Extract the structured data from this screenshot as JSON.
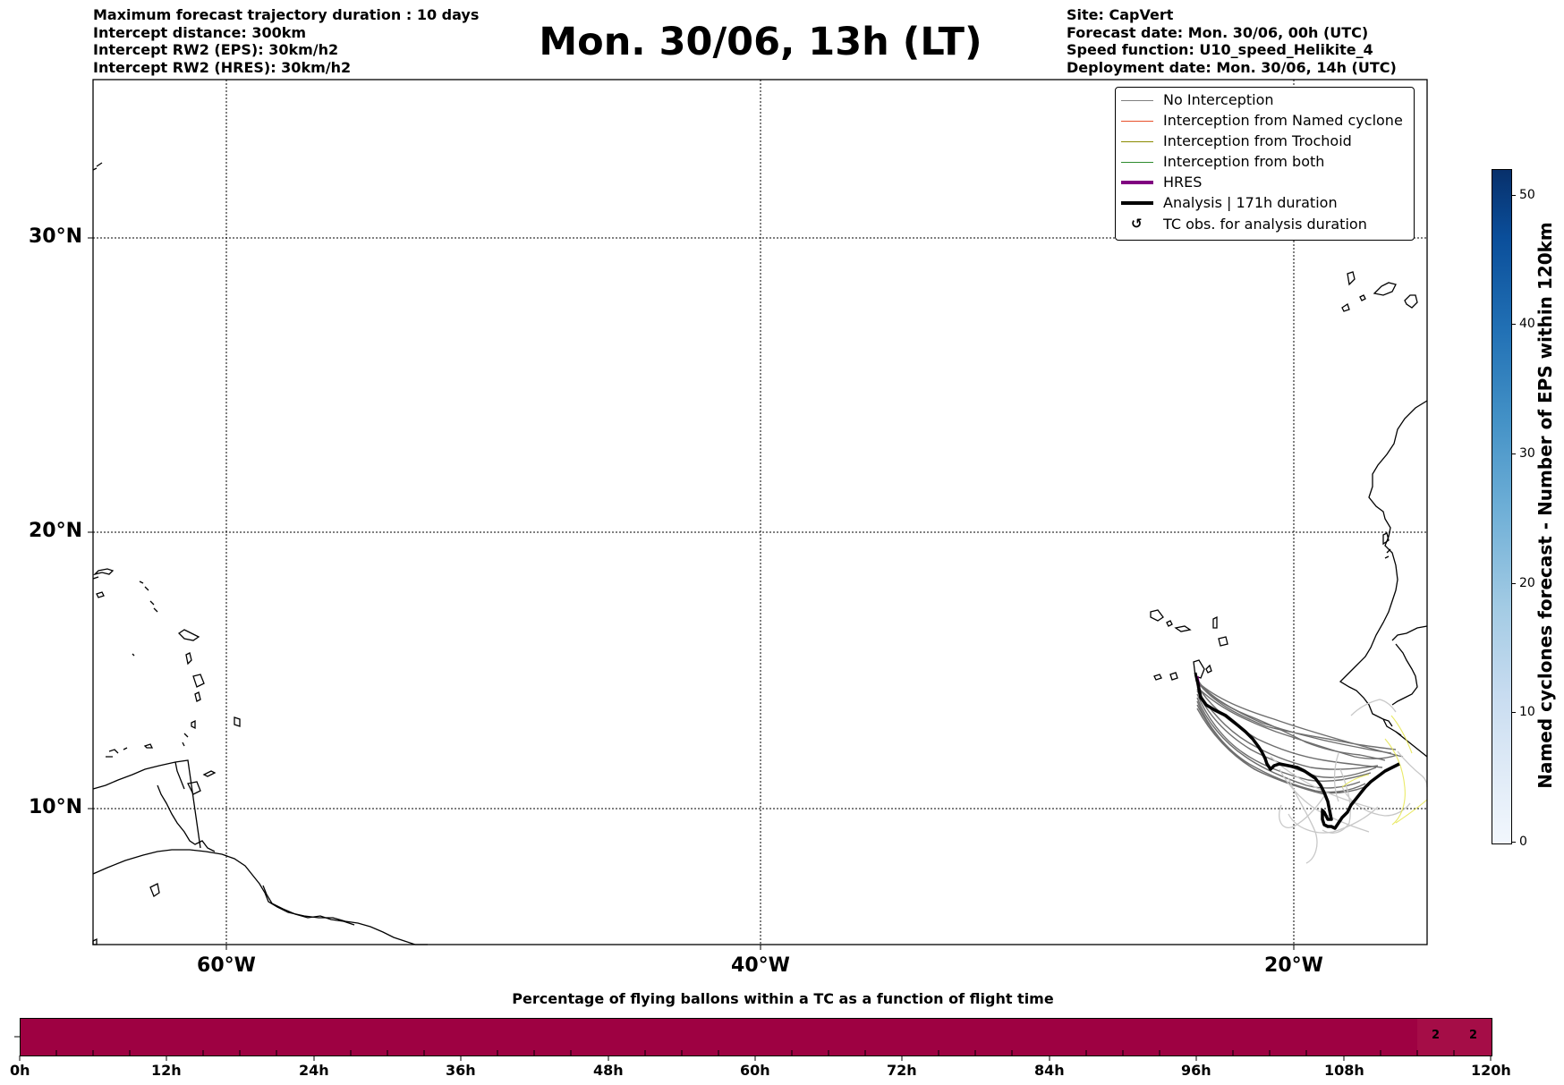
{
  "header_left": [
    "Maximum forecast trajectory duration : 10 days",
    "Intercept distance: 300km",
    "Intercept RW2 (EPS):  30km/h2",
    "Intercept RW2 (HRES): 30km/h2"
  ],
  "title": "Mon. 30/06, 13h (LT)",
  "header_right": [
    "Site: CapVert",
    "Forecast date: Mon. 30/06, 00h (UTC)",
    "Speed function: U10_speed_Helikite_4",
    "Deployment date: Mon. 30/06, 14h (UTC)"
  ],
  "map": {
    "lat_labels": [
      "30°N",
      "20°N",
      "10°N"
    ],
    "lon_labels": [
      "60°W",
      "40°W",
      "20°W"
    ],
    "gridlines": "dotted",
    "extent": {
      "lon_min": -65,
      "lon_max": -15,
      "lat_min": 5.4,
      "lat_max": 34.7
    }
  },
  "legend": {
    "placement": "top-right",
    "items": [
      {
        "label": "No Interception",
        "color": "#808080",
        "style": "thin-line"
      },
      {
        "label": "Interception from Named cyclone",
        "color": "#e8502a",
        "style": "thin-line"
      },
      {
        "label": "Interception from Trochoid",
        "color": "#8a8a00",
        "style": "thin-line"
      },
      {
        "label": "Interception from both",
        "color": "#2e8b2e",
        "style": "thin-line"
      },
      {
        "label": "HRES",
        "color": "#800080",
        "style": "thick-line"
      },
      {
        "label": "Analysis | 171h duration",
        "color": "#000000",
        "style": "thick-line"
      },
      {
        "label": "TC obs. for analysis duration",
        "color": "#000000",
        "style": "cyclone-icon"
      }
    ]
  },
  "colorbar": {
    "label": "Named cyclones forecast - Number of EPS within 120km",
    "ticks": [
      "0",
      "10",
      "20",
      "30",
      "40",
      "50"
    ],
    "min": 0,
    "max": 52,
    "colormap": "Blues"
  },
  "flight_time_bar": {
    "title": "Percentage of flying ballons within a TC as a function of flight time",
    "hour_labels": [
      "0h",
      "12h",
      "24h",
      "36h",
      "48h",
      "60h",
      "72h",
      "84h",
      "96h",
      "108h",
      "120h"
    ],
    "values_shown": [
      "2",
      "2"
    ],
    "bar_color": "#9e0142"
  }
}
